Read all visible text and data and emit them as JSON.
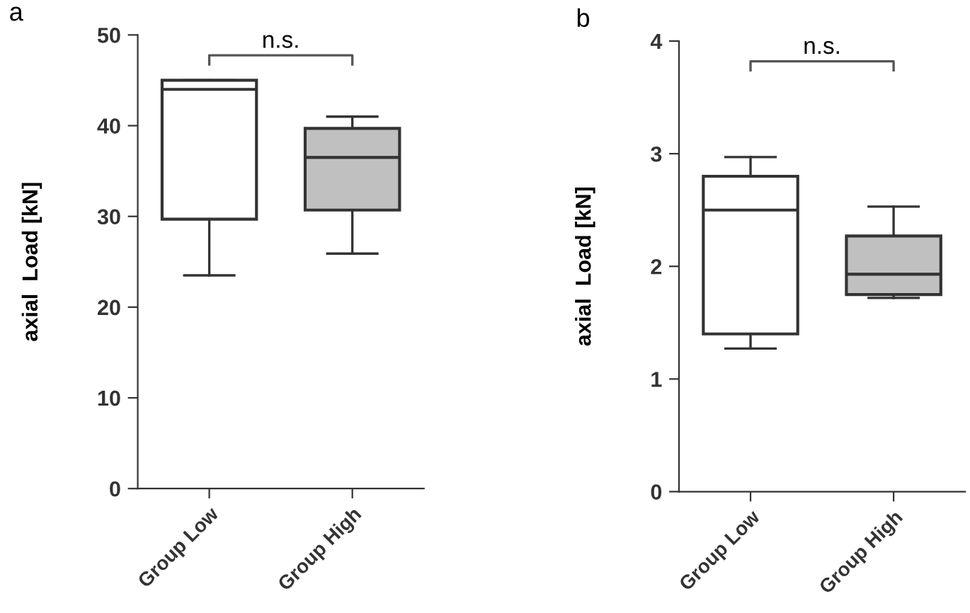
{
  "chart_data": [
    {
      "type": "box",
      "ylabel": "axial  Load [kN]",
      "annotations": [
        "a",
        "n.s."
      ],
      "categories": [
        "Group Low",
        "Group High"
      ],
      "colors": [
        "#ffffff",
        "#c0c0c0"
      ],
      "boxes": [
        {
          "low": 23.5,
          "q1": 29.7,
          "median": 44,
          "q3": 45,
          "high": 45
        },
        {
          "low": 25.9,
          "q1": 30.7,
          "median": 36.5,
          "q3": 39.7,
          "high": 41
        }
      ],
      "ylim": [
        0,
        50
      ],
      "yticks": [
        0,
        10,
        20,
        30,
        40,
        50
      ],
      "grid": false
    },
    {
      "type": "box",
      "ylabel": "axial  Load [kN]",
      "annotations": [
        "b",
        "n.s."
      ],
      "categories": [
        "Group Low",
        "Group High"
      ],
      "colors": [
        "#ffffff",
        "#c0c0c0"
      ],
      "boxes": [
        {
          "low": 1.27,
          "q1": 1.4,
          "median": 2.5,
          "q3": 2.8,
          "high": 2.97
        },
        {
          "low": 1.72,
          "q1": 1.75,
          "median": 1.93,
          "q3": 2.27,
          "high": 2.53
        }
      ],
      "ylim": [
        0,
        4
      ],
      "yticks": [
        0,
        1,
        2,
        3,
        4
      ],
      "grid": false
    }
  ]
}
